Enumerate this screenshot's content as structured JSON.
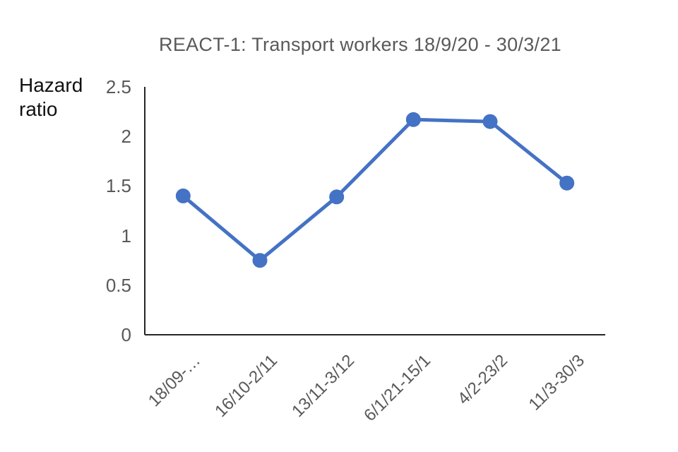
{
  "title": "REACT-1: Transport workers 18/9/20 - 30/3/21",
  "chart_data": {
    "type": "line",
    "title": "REACT-1: Transport workers 18/9/20 - 30/3/21",
    "ylabel": "Hazard ratio",
    "xlabel": "",
    "categories": [
      "18/09-…",
      "16/10-2/11",
      "13/11-3/12",
      "6/1/21-15/1",
      "4/2-23/2",
      "11/3-30/3"
    ],
    "series": [
      {
        "name": "Hazard ratio",
        "values": [
          1.4,
          0.75,
          1.39,
          2.17,
          2.15,
          1.53
        ]
      }
    ],
    "y_ticks": [
      0,
      0.5,
      1,
      1.5,
      2,
      2.5
    ],
    "ylim": [
      0,
      2.5
    ],
    "grid": false,
    "legend_position": "none",
    "line_color": "#4472C4",
    "marker_color": "#4472C4",
    "tick_text_color": "#595959",
    "title_color": "#595959",
    "axis_line_color": "#262626",
    "ylabel_color": "#111111"
  }
}
